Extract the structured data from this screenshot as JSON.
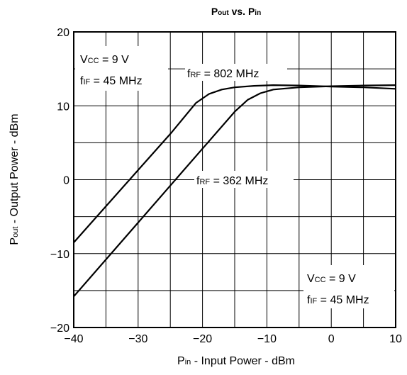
{
  "chart_data": {
    "type": "line",
    "title": {
      "main": "P",
      "sub1": "out",
      "mid": " vs. P",
      "sub2": "in"
    },
    "xlabel": {
      "main": "P",
      "sub": "in",
      "rest": " -  Input Power  - dBm"
    },
    "ylabel": {
      "main": "P",
      "sub": "out",
      "rest": " -  Output Power  - dBm"
    },
    "xlim": [
      -40,
      10
    ],
    "ylim": [
      -20,
      20
    ],
    "x_tick_labels": [
      "−40",
      "−30",
      "−20",
      "−10",
      "0",
      "10"
    ],
    "y_tick_labels": [
      "20",
      "10",
      "0",
      "−10",
      "−20"
    ],
    "grid": {
      "x_minor_step": 5,
      "y_minor_step": 5
    },
    "series": [
      {
        "name": "fRF = 802 MHz",
        "x": [
          -40,
          -35,
          -30,
          -25,
          -21,
          -19,
          -17,
          -15,
          -12,
          -9,
          -5,
          0,
          5,
          10
        ],
        "y": [
          -8.5,
          -3.6,
          1.3,
          6.2,
          10.4,
          11.6,
          12.2,
          12.5,
          12.7,
          12.8,
          12.75,
          12.6,
          12.5,
          12.3
        ]
      },
      {
        "name": "fRF = 362 MHz",
        "x": [
          -40,
          -35,
          -30,
          -25,
          -20,
          -15,
          -13,
          -11,
          -9,
          -5,
          0,
          5,
          10
        ],
        "y": [
          -15.8,
          -10.8,
          -5.8,
          -0.8,
          4.2,
          9.2,
          10.8,
          11.7,
          12.2,
          12.5,
          12.65,
          12.75,
          12.8
        ]
      }
    ],
    "annotations": {
      "vcc_top": {
        "v": "V",
        "sub": "CC",
        "rest": " = 9 V"
      },
      "fif_top": {
        "f": "f",
        "sub": "IF",
        "rest": " = 45 MHz"
      },
      "vcc_bottom": {
        "v": "V",
        "sub": "CC",
        "rest": " = 9 V"
      },
      "fif_bottom": {
        "f": "f",
        "sub": "IF",
        "rest": " = 45 MHz"
      },
      "label_802": {
        "f": "f",
        "sub": "RF",
        "rest": " = 802 MHz"
      },
      "label_362": {
        "f": "f",
        "sub": "RF",
        "rest": " = 362 MHz"
      }
    }
  }
}
